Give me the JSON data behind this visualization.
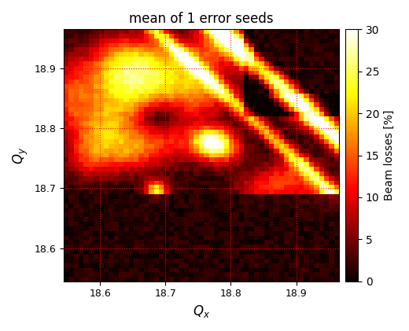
{
  "title": "mean of 1 error seeds",
  "xlabel": "$Q_x$",
  "ylabel": "$Q_y$",
  "colorbar_label": "Beam losses [%]",
  "vmin": 0,
  "vmax": 30,
  "qx_min": 18.545,
  "qx_max": 18.965,
  "qy_min": 18.545,
  "qy_max": 18.965,
  "xticks": [
    18.6,
    18.7,
    18.8,
    18.9
  ],
  "yticks": [
    18.6,
    18.7,
    18.8,
    18.9
  ],
  "grid_color": "red",
  "cmap": "hot",
  "figsize": [
    5.2,
    4.21
  ],
  "dpi": 100
}
